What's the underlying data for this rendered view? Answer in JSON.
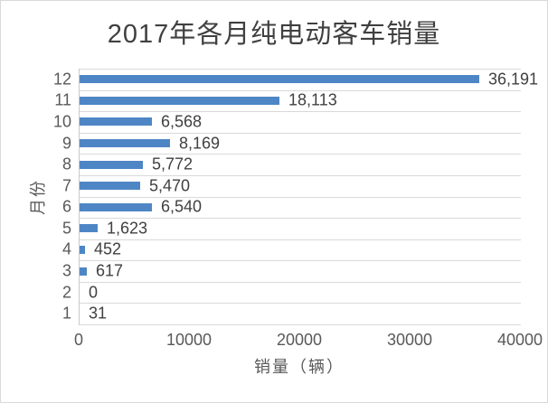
{
  "chart_data": {
    "type": "bar",
    "orientation": "horizontal",
    "title": "2017年各月纯电动客车销量",
    "xlabel": "销量（辆）",
    "ylabel": "月份",
    "categories_top_to_bottom": [
      "12",
      "11",
      "10",
      "9",
      "8",
      "7",
      "6",
      "5",
      "4",
      "3",
      "2",
      "1"
    ],
    "values_top_to_bottom": [
      36191,
      18113,
      6568,
      8169,
      5772,
      5470,
      6540,
      1623,
      452,
      617,
      0,
      31
    ],
    "value_labels_top_to_bottom": [
      "36,191",
      "18,113",
      "6,568",
      "8,169",
      "5,772",
      "5,470",
      "6,540",
      "1,623",
      "452",
      "617",
      "0",
      "31"
    ],
    "xlim": [
      0,
      40000
    ],
    "x_tick_values": [
      0,
      10000,
      20000,
      30000,
      40000
    ],
    "x_tick_labels": [
      "0",
      "10000",
      "20000",
      "30000",
      "40000"
    ],
    "grid": "horizontal-category-separators",
    "legend": "none",
    "bar_color": "#4e86c5",
    "gridline_color": "#d9d9d9",
    "axis_line_color": "#c9c9c9",
    "data_label_color": "#404040",
    "tick_label_color": "#595959"
  }
}
